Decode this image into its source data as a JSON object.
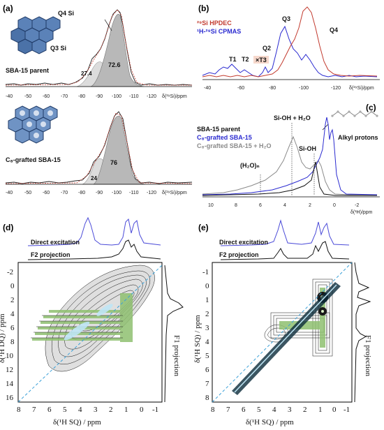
{
  "panels": {
    "a": {
      "label": "(a)",
      "sample_top": "SBA-15 parent",
      "sample_bottom": "C₈-grafted SBA-15",
      "q4_label": "Q4 Si",
      "q3_label": "Q3 Si",
      "area_top_q4": "72.6",
      "area_top_q3": "27.4",
      "area_bottom_q4": "76",
      "area_bottom_q3": "24",
      "xaxis_label": "δ(²⁹Si)/ppm",
      "ticks": [
        "-40",
        "-50",
        "-60",
        "-70",
        "-80",
        "-90",
        "-100",
        "-110",
        "-120"
      ]
    },
    "b": {
      "label": "(b)",
      "legend_hpdec": "²⁹Si HPDEC",
      "legend_cpmas": "¹H-²⁹Si CPMAS",
      "peak_q3": "Q3",
      "peak_q4": "Q4",
      "peak_q2": "Q2",
      "peak_t1": "T1",
      "peak_t2": "T2",
      "peak_t3": "×T3",
      "xaxis_label": "δ(²⁹Si)/ppm",
      "ticks": [
        "-40",
        "-60",
        "-80",
        "-100",
        "-120"
      ]
    },
    "c": {
      "label": "(c)",
      "legend_parent": "SBA-15 parent",
      "legend_grafted": "C₈-grafted SBA-15",
      "legend_grafted_water": "C₈-grafted SBA-15 + H₂O",
      "ann_sioh_water": "Si-OH + H₂O",
      "ann_sioh": "Si-OH",
      "ann_water": "(H₂O)ₙ",
      "ann_alkyl": "Alkyl protons",
      "xaxis_label": "δ(¹H)/ppm",
      "ticks": [
        "10",
        "8",
        "6",
        "4",
        "2",
        "0",
        "-2"
      ]
    },
    "d": {
      "label": "(d)",
      "direct_excitation": "Direct excitation",
      "f2_projection": "F2 projection",
      "f1_projection": "F1 projection",
      "xaxis_label": "δ(¹H SQ) / ppm",
      "yaxis_label": "δ(¹H DQ) / ppm",
      "xticks": [
        "8",
        "7",
        "6",
        "5",
        "4",
        "3",
        "2",
        "1",
        "0",
        "-1"
      ],
      "yticks": [
        "-2",
        "0",
        "2",
        "4",
        "6",
        "8",
        "10",
        "12",
        "14",
        "16"
      ]
    },
    "e": {
      "label": "(e)",
      "direct_excitation": "Direct excitation",
      "f2_projection": "F2 projection",
      "f1_projection": "F1 projection",
      "xaxis_label": "δ(¹H SQ) / ppm",
      "yaxis_label": "δ(¹H SQ) / ppm",
      "xticks": [
        "8",
        "7",
        "6",
        "5",
        "4",
        "3",
        "2",
        "1",
        "0",
        "-1"
      ],
      "yticks": [
        "-1",
        "0",
        "1",
        "2",
        "3",
        "4",
        "5",
        "6",
        "7",
        "8"
      ]
    }
  },
  "colors": {
    "hpdec": "#c23a2e",
    "cpmas": "#2a2ad0",
    "direct": "#4a4ad8",
    "contour": "#111111",
    "green": "#8fc070",
    "diagonal": "#3aa0d8"
  }
}
